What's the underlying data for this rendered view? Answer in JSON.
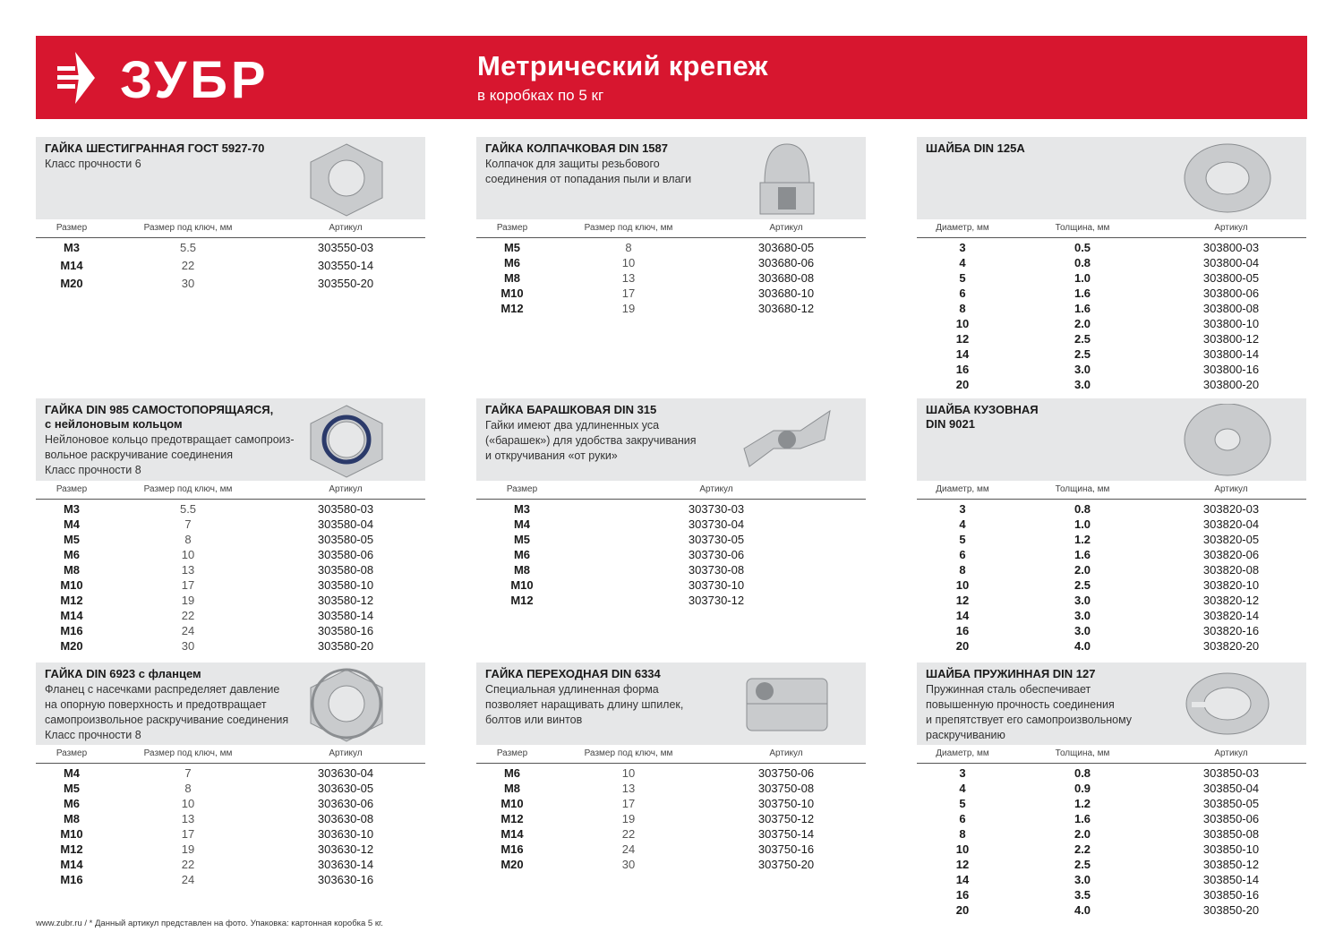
{
  "header": {
    "brand": "ЗУБР",
    "title": "Метрический крепеж",
    "subtitle": "в коробках по 5 кг",
    "accent": "#d7162f"
  },
  "footer": "www.zubr.ru   /   * Данный артикул представлен на фото. Упаковка: картонная коробка 5 кг.",
  "sections": [
    {
      "title": [
        "ГАЙКА ШЕСТИГРАННАЯ ГОСТ 5927-70"
      ],
      "desc": [
        "Класс прочности 6"
      ],
      "icon": "hex-nut-icon",
      "columns": [
        "Размер",
        "Размер под ключ, мм",
        "Артикул"
      ],
      "rows": [
        [
          "M3",
          "5.5",
          "303550-03"
        ],
        [
          "M14",
          "22",
          "303550-14"
        ],
        [
          "M20",
          "30",
          "303550-20"
        ]
      ]
    },
    {
      "title": [
        "ГАЙКА КОЛПАЧКОВАЯ DIN 1587"
      ],
      "desc": [
        "Колпачок для защиты резьбового",
        "соединения от попадания пыли и влаги"
      ],
      "icon": "cap-nut-icon",
      "columns": [
        "Размер",
        "Размер под ключ, мм",
        "Артикул"
      ],
      "rows": [
        [
          "M5",
          "8",
          "303680-05"
        ],
        [
          "M6",
          "10",
          "303680-06"
        ],
        [
          "M8",
          "13",
          "303680-08"
        ],
        [
          "M10",
          "17",
          "303680-10"
        ],
        [
          "M12",
          "19",
          "303680-12"
        ]
      ]
    },
    {
      "title": [
        "ШАЙБА DIN 125A"
      ],
      "desc": [],
      "icon": "flat-washer-icon",
      "columns": [
        "Диаметр, мм",
        "Толщина, мм",
        "Артикул"
      ],
      "rows": [
        [
          "3",
          "0.5",
          "303800-03"
        ],
        [
          "4",
          "0.8",
          "303800-04"
        ],
        [
          "5",
          "1.0",
          "303800-05"
        ],
        [
          "6",
          "1.6",
          "303800-06"
        ],
        [
          "8",
          "1.6",
          "303800-08"
        ],
        [
          "10",
          "2.0",
          "303800-10"
        ],
        [
          "12",
          "2.5",
          "303800-12"
        ],
        [
          "14",
          "2.5",
          "303800-14"
        ],
        [
          "16",
          "3.0",
          "303800-16"
        ],
        [
          "20",
          "3.0",
          "303800-20"
        ]
      ]
    },
    {
      "title": [
        "ГАЙКА DIN 985 САМОСТОПОРЯЩАЯСЯ,",
        "с нейлоновым кольцом"
      ],
      "desc": [
        "Нейлоновое кольцо предотвращает самопроиз-",
        "вольное раскручивание соединения",
        "Класс прочности 8"
      ],
      "icon": "nylon-lock-nut-icon",
      "columns": [
        "Размер",
        "Размер под ключ, мм",
        "Артикул"
      ],
      "rows": [
        [
          "M3",
          "5.5",
          "303580-03"
        ],
        [
          "M4",
          "7",
          "303580-04"
        ],
        [
          "M5",
          "8",
          "303580-05"
        ],
        [
          "M6",
          "10",
          "303580-06"
        ],
        [
          "M8",
          "13",
          "303580-08"
        ],
        [
          "M10",
          "17",
          "303580-10"
        ],
        [
          "M12",
          "19",
          "303580-12"
        ],
        [
          "M14",
          "22",
          "303580-14"
        ],
        [
          "M16",
          "24",
          "303580-16"
        ],
        [
          "M20",
          "30",
          "303580-20"
        ]
      ]
    },
    {
      "title": [
        "ГАЙКА БАРАШКОВАЯ DIN 315"
      ],
      "desc": [
        "Гайки имеют два удлиненных уса",
        "(«барашек») для удобства закручивания",
        "и откручивания «от руки»"
      ],
      "icon": "wing-nut-icon",
      "columns": [
        "Размер",
        "Артикул"
      ],
      "rows": [
        [
          "M3",
          "303730-03"
        ],
        [
          "M4",
          "303730-04"
        ],
        [
          "M5",
          "303730-05"
        ],
        [
          "M6",
          "303730-06"
        ],
        [
          "M8",
          "303730-08"
        ],
        [
          "M10",
          "303730-10"
        ],
        [
          "M12",
          "303730-12"
        ]
      ]
    },
    {
      "title": [
        "ШАЙБА КУЗОВНАЯ",
        "DIN 9021"
      ],
      "desc": [],
      "icon": "body-washer-icon",
      "columns": [
        "Диаметр, мм",
        "Толщина, мм",
        "Артикул"
      ],
      "rows": [
        [
          "3",
          "0.8",
          "303820-03"
        ],
        [
          "4",
          "1.0",
          "303820-04"
        ],
        [
          "5",
          "1.2",
          "303820-05"
        ],
        [
          "6",
          "1.6",
          "303820-06"
        ],
        [
          "8",
          "2.0",
          "303820-08"
        ],
        [
          "10",
          "2.5",
          "303820-10"
        ],
        [
          "12",
          "3.0",
          "303820-12"
        ],
        [
          "14",
          "3.0",
          "303820-14"
        ],
        [
          "16",
          "3.0",
          "303820-16"
        ],
        [
          "20",
          "4.0",
          "303820-20"
        ]
      ]
    },
    {
      "title": [
        "ГАЙКА DIN 6923 с фланцем"
      ],
      "desc": [
        "Фланец с насечками распределяет давление",
        "на опорную поверхность и предотвращает",
        "самопроизвольное раскручивание соединения",
        "Класс прочности 8"
      ],
      "icon": "flange-nut-icon",
      "columns": [
        "Размер",
        "Размер под ключ, мм",
        "Артикул"
      ],
      "rows": [
        [
          "M4",
          "7",
          "303630-04"
        ],
        [
          "M5",
          "8",
          "303630-05"
        ],
        [
          "M6",
          "10",
          "303630-06"
        ],
        [
          "M8",
          "13",
          "303630-08"
        ],
        [
          "M10",
          "17",
          "303630-10"
        ],
        [
          "M12",
          "19",
          "303630-12"
        ],
        [
          "M14",
          "22",
          "303630-14"
        ],
        [
          "M16",
          "24",
          "303630-16"
        ]
      ]
    },
    {
      "title": [
        "ГАЙКА ПЕРЕХОДНАЯ DIN 6334"
      ],
      "desc": [
        "Специальная удлиненная форма",
        "позволяет наращивать длину шпилек,",
        "болтов или винтов"
      ],
      "icon": "coupling-nut-icon",
      "columns": [
        "Размер",
        "Размер под ключ, мм",
        "Артикул"
      ],
      "rows": [
        [
          "M6",
          "10",
          "303750-06"
        ],
        [
          "M8",
          "13",
          "303750-08"
        ],
        [
          "M10",
          "17",
          "303750-10"
        ],
        [
          "M12",
          "19",
          "303750-12"
        ],
        [
          "M14",
          "22",
          "303750-14"
        ],
        [
          "M16",
          "24",
          "303750-16"
        ],
        [
          "M20",
          "30",
          "303750-20"
        ]
      ]
    },
    {
      "title": [
        "ШАЙБА ПРУЖИННАЯ DIN 127"
      ],
      "desc": [
        "Пружинная сталь обеспечивает",
        "повышенную прочность соединения",
        "и препятствует его самопроизвольному",
        "раскручиванию"
      ],
      "icon": "spring-washer-icon",
      "columns": [
        "Диаметр, мм",
        "Толщина, мм",
        "Артикул"
      ],
      "rows": [
        [
          "3",
          "0.8",
          "303850-03"
        ],
        [
          "4",
          "0.9",
          "303850-04"
        ],
        [
          "5",
          "1.2",
          "303850-05"
        ],
        [
          "6",
          "1.6",
          "303850-06"
        ],
        [
          "8",
          "2.0",
          "303850-08"
        ],
        [
          "10",
          "2.2",
          "303850-10"
        ],
        [
          "12",
          "2.5",
          "303850-12"
        ],
        [
          "14",
          "3.0",
          "303850-14"
        ],
        [
          "16",
          "3.5",
          "303850-16"
        ],
        [
          "20",
          "4.0",
          "303850-20"
        ]
      ]
    }
  ]
}
